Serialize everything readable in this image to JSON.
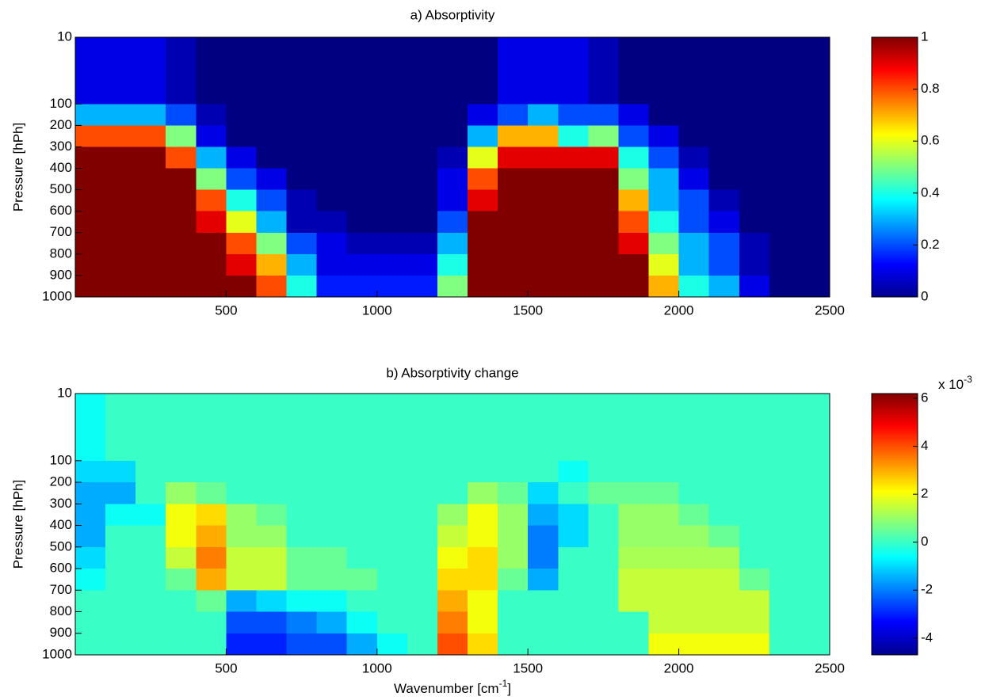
{
  "chart_data": [
    {
      "type": "heatmap",
      "title": "a) Absorptivity",
      "ylabel": "Pressure [hPh]",
      "xlim": [
        0,
        2500
      ],
      "xticks": [
        500,
        1000,
        1500,
        2000,
        2500
      ],
      "ylim": [
        10,
        1000
      ],
      "yticks": [
        10,
        100,
        200,
        300,
        400,
        500,
        600,
        700,
        800,
        900,
        1000
      ],
      "xbins": [
        0,
        100,
        200,
        300,
        400,
        500,
        600,
        700,
        800,
        900,
        1000,
        1100,
        1200,
        1300,
        1400,
        1500,
        1600,
        1700,
        1800,
        1900,
        2000,
        2100,
        2200,
        2300,
        2400,
        2500
      ],
      "ybins": [
        10,
        100,
        200,
        300,
        400,
        500,
        600,
        700,
        800,
        900,
        1000
      ],
      "clim": [
        0,
        1
      ],
      "cticks": [
        0,
        0.2,
        0.4,
        0.6,
        0.8,
        1
      ],
      "colormap": "jet",
      "z": [
        [
          0.1,
          0.1,
          0.1,
          0.05,
          0,
          0,
          0,
          0,
          0,
          0,
          0,
          0,
          0,
          0,
          0.1,
          0.1,
          0.1,
          0.05,
          0,
          0,
          0,
          0,
          0,
          0,
          0
        ],
        [
          0.3,
          0.3,
          0.3,
          0.2,
          0.05,
          0,
          0,
          0,
          0,
          0,
          0,
          0,
          0,
          0.1,
          0.2,
          0.3,
          0.2,
          0.2,
          0.1,
          0,
          0,
          0,
          0,
          0,
          0
        ],
        [
          0.8,
          0.8,
          0.8,
          0.5,
          0.1,
          0,
          0,
          0,
          0,
          0,
          0,
          0,
          0,
          0.3,
          0.7,
          0.7,
          0.4,
          0.5,
          0.2,
          0.1,
          0,
          0,
          0,
          0,
          0
        ],
        [
          1,
          1,
          1,
          0.8,
          0.3,
          0.1,
          0,
          0,
          0,
          0,
          0,
          0,
          0.05,
          0.6,
          0.9,
          0.9,
          0.9,
          0.9,
          0.4,
          0.2,
          0.05,
          0,
          0,
          0,
          0
        ],
        [
          1,
          1,
          1,
          1,
          0.5,
          0.2,
          0.1,
          0,
          0,
          0,
          0,
          0,
          0.1,
          0.8,
          1,
          1,
          1,
          1,
          0.5,
          0.3,
          0.1,
          0,
          0,
          0,
          0
        ],
        [
          1,
          1,
          1,
          1,
          0.8,
          0.4,
          0.2,
          0.05,
          0,
          0,
          0,
          0,
          0.1,
          0.9,
          1,
          1,
          1,
          1,
          0.7,
          0.3,
          0.2,
          0.05,
          0,
          0,
          0
        ],
        [
          1,
          1,
          1,
          1,
          0.9,
          0.6,
          0.3,
          0.05,
          0.05,
          0,
          0,
          0,
          0.2,
          1,
          1,
          1,
          1,
          1,
          0.8,
          0.4,
          0.2,
          0.1,
          0,
          0,
          0
        ],
        [
          1,
          1,
          1,
          1,
          1,
          0.8,
          0.5,
          0.2,
          0.1,
          0.05,
          0.05,
          0.05,
          0.3,
          1,
          1,
          1,
          1,
          1,
          0.9,
          0.5,
          0.3,
          0.2,
          0.05,
          0,
          0
        ],
        [
          1,
          1,
          1,
          1,
          1,
          0.9,
          0.7,
          0.3,
          0.1,
          0.1,
          0.1,
          0.1,
          0.4,
          1,
          1,
          1,
          1,
          1,
          1,
          0.6,
          0.3,
          0.2,
          0.05,
          0,
          0
        ],
        [
          1,
          1,
          1,
          1,
          1,
          1,
          0.8,
          0.4,
          0.15,
          0.15,
          0.15,
          0.15,
          0.5,
          1,
          1,
          1,
          1,
          1,
          1,
          0.7,
          0.4,
          0.3,
          0.1,
          0,
          0
        ]
      ]
    },
    {
      "type": "heatmap",
      "title": "b) Absorptivity change",
      "ylabel": "Pressure [hPh]",
      "xlabel": "Wavenumber [cm",
      "xlabel_sup": "-1",
      "xlabel_end": "]",
      "xlim": [
        0,
        2500
      ],
      "xticks": [
        500,
        1000,
        1500,
        2000,
        2500
      ],
      "ylim": [
        10,
        1000
      ],
      "yticks": [
        10,
        100,
        200,
        300,
        400,
        500,
        600,
        700,
        800,
        900,
        1000
      ],
      "xbins": [
        0,
        100,
        200,
        300,
        400,
        500,
        600,
        700,
        800,
        900,
        1000,
        1100,
        1200,
        1300,
        1400,
        1500,
        1600,
        1700,
        1800,
        1900,
        2000,
        2100,
        2200,
        2300,
        2400,
        2500
      ],
      "ybins": [
        10,
        100,
        200,
        300,
        400,
        500,
        600,
        700,
        800,
        900,
        1000
      ],
      "clim": [
        -4.7,
        6.2
      ],
      "cticks": [
        -4,
        -2,
        0,
        2,
        4,
        6
      ],
      "colormap": "jet",
      "cscale_label": "x 10",
      "cscale_exponent": "-3",
      "z": [
        [
          -0.5,
          0,
          0,
          0,
          0,
          0,
          0,
          0,
          0,
          0,
          0,
          0,
          0,
          0,
          0,
          0,
          0,
          0,
          0,
          0,
          0,
          0,
          0,
          0,
          0
        ],
        [
          -1,
          -1,
          0,
          0,
          0,
          0,
          0,
          0,
          0,
          0,
          0,
          0,
          0,
          0,
          0,
          0,
          -0.5,
          0,
          0,
          0,
          0,
          0,
          0,
          0,
          0
        ],
        [
          -1.5,
          -1.5,
          0,
          1,
          0.5,
          0,
          0,
          0,
          0,
          0,
          0,
          0,
          0,
          1,
          0.5,
          -1,
          0,
          0.5,
          0.5,
          0.5,
          0,
          0,
          0,
          0,
          0
        ],
        [
          -1.5,
          -0.5,
          -0.5,
          2,
          2.5,
          1,
          0.5,
          0,
          0,
          0,
          0,
          0,
          1,
          2,
          1,
          -1.5,
          -1,
          0,
          1,
          1,
          0.5,
          0,
          0,
          0,
          0
        ],
        [
          -1.5,
          0,
          0,
          2,
          3,
          1,
          1,
          0,
          0,
          0,
          0,
          0,
          1.5,
          2,
          1,
          -2,
          -1,
          0,
          1,
          1,
          1,
          0.5,
          0,
          0,
          0
        ],
        [
          -1,
          0,
          0,
          1.5,
          3.5,
          1.5,
          1.5,
          0.5,
          0.5,
          0,
          0,
          0,
          2,
          2.5,
          1,
          -2,
          0,
          0,
          1.2,
          1.2,
          1.2,
          1.2,
          0,
          0,
          0
        ],
        [
          -0.5,
          0,
          0,
          0.5,
          3,
          1.5,
          1.5,
          0.5,
          0.5,
          0.5,
          0,
          0,
          2.5,
          2.5,
          0.5,
          -1.5,
          0,
          0,
          1.5,
          1.5,
          1.5,
          1.5,
          0.5,
          0,
          0
        ],
        [
          0,
          0,
          0,
          0,
          0.5,
          -1.5,
          -1,
          -0.5,
          -0.5,
          0,
          0,
          0,
          3,
          2,
          0,
          0,
          0,
          0,
          1.5,
          1.5,
          1.5,
          1.5,
          1.5,
          0,
          0
        ],
        [
          0,
          0,
          0,
          0,
          0,
          -2.5,
          -2.5,
          -2,
          -1.5,
          -0.5,
          0,
          0,
          3.5,
          2,
          0,
          0,
          0,
          0,
          0,
          1.5,
          1.5,
          1.5,
          1.5,
          0,
          0
        ],
        [
          0,
          0,
          0,
          0,
          0,
          -3,
          -3,
          -2.5,
          -2.5,
          -1.5,
          -0.5,
          0,
          4,
          2.5,
          0,
          0,
          0,
          0,
          0,
          2,
          2,
          2,
          2,
          0,
          0
        ]
      ]
    }
  ]
}
